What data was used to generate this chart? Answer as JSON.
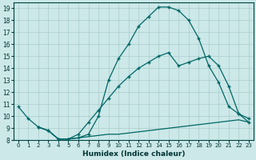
{
  "xlabel": "Humidex (Indice chaleur)",
  "bg_color": "#cce8e8",
  "line_color": "#006666",
  "grid_color": "#aacccc",
  "xlim": [
    -0.5,
    23.5
  ],
  "ylim": [
    8,
    19.5
  ],
  "xticks": [
    0,
    1,
    2,
    3,
    4,
    5,
    6,
    7,
    8,
    9,
    10,
    11,
    12,
    13,
    14,
    15,
    16,
    17,
    18,
    19,
    20,
    21,
    22,
    23
  ],
  "yticks": [
    8,
    9,
    10,
    11,
    12,
    13,
    14,
    15,
    16,
    17,
    18,
    19
  ],
  "line1_x": [
    0,
    1,
    2,
    3,
    4,
    5,
    6,
    7,
    8,
    9,
    10,
    11,
    12,
    13,
    14,
    15,
    16,
    17,
    18,
    19,
    20,
    21,
    22,
    23
  ],
  "line1_y": [
    10.8,
    9.8,
    9.1,
    8.8,
    8.1,
    8.1,
    8.2,
    8.5,
    10.0,
    13.0,
    14.8,
    16.0,
    17.5,
    18.3,
    19.1,
    19.1,
    18.8,
    18.0,
    16.5,
    14.2,
    12.8,
    10.8,
    10.2,
    9.5
  ],
  "line2_x": [
    2,
    3,
    4,
    5,
    6,
    7,
    8,
    9,
    10,
    11,
    12,
    13,
    14,
    15,
    16,
    17,
    18,
    19,
    20,
    21,
    22,
    23
  ],
  "line2_y": [
    9.1,
    8.8,
    8.1,
    8.1,
    8.5,
    9.5,
    10.5,
    11.5,
    12.5,
    13.3,
    14.0,
    14.5,
    15.0,
    15.3,
    14.2,
    14.5,
    14.8,
    15.0,
    14.2,
    12.5,
    10.2,
    9.8
  ],
  "line3_x": [
    2,
    3,
    4,
    5,
    6,
    7,
    8,
    9,
    10,
    11,
    12,
    13,
    14,
    15,
    16,
    17,
    18,
    19,
    20,
    21,
    22,
    23
  ],
  "line3_y": [
    9.1,
    8.8,
    8.1,
    8.1,
    8.2,
    8.3,
    8.4,
    8.5,
    8.5,
    8.6,
    8.7,
    8.8,
    8.9,
    9.0,
    9.1,
    9.2,
    9.3,
    9.4,
    9.5,
    9.6,
    9.7,
    9.5
  ],
  "line1_marker": "+",
  "line2_marker": "+",
  "line3_marker": null,
  "lw": 0.9,
  "ms": 3.5
}
